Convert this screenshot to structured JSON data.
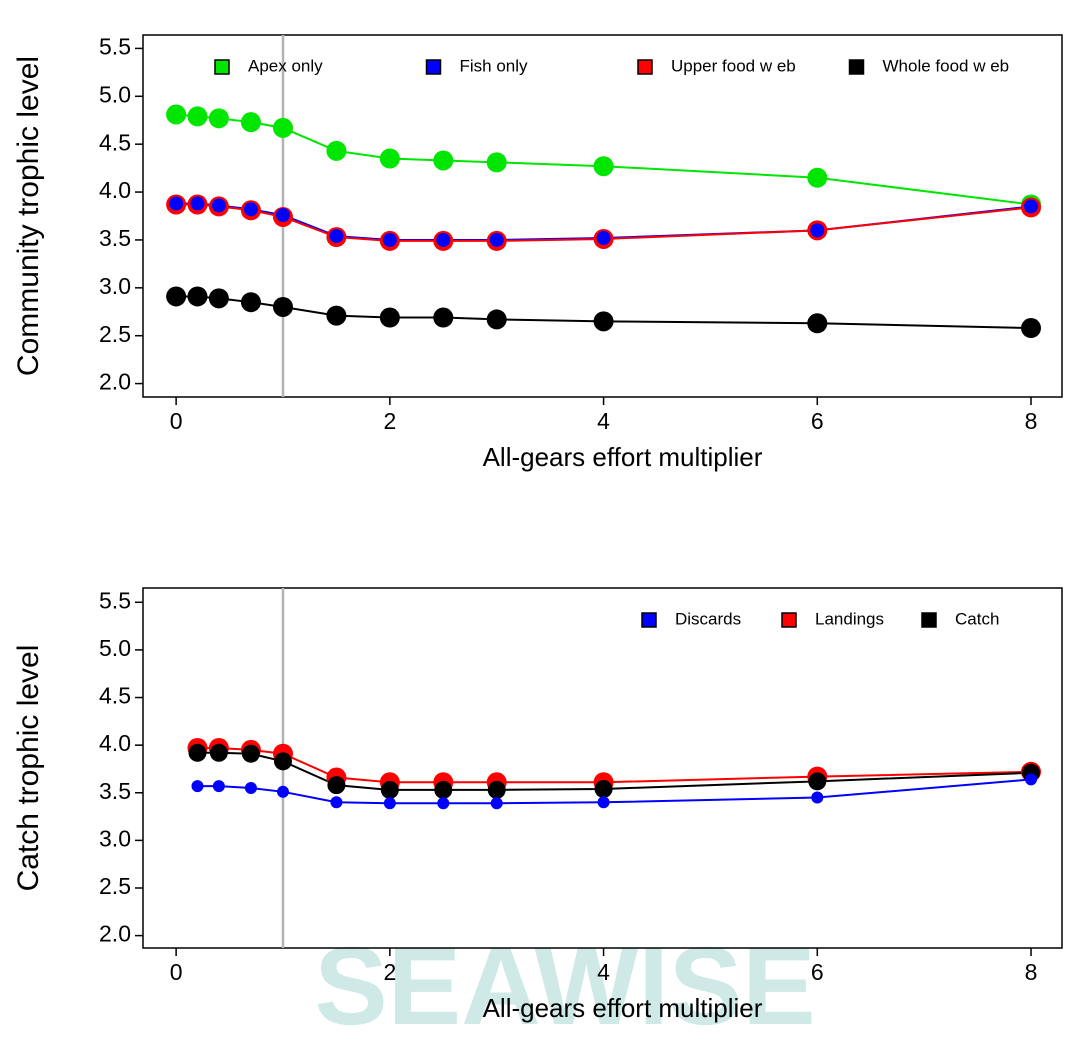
{
  "watermark": "SEAWISE",
  "chart_data": [
    {
      "type": "line",
      "x_label": "All-gears effort multiplier",
      "y_label": "Community trophic level",
      "xlim": [
        -0.31,
        8.29
      ],
      "ylim": [
        1.86,
        5.64
      ],
      "xticks": [
        0,
        2,
        4,
        6,
        8
      ],
      "yticks": [
        {
          "value": 2,
          "label": "2.0"
        },
        2.5,
        {
          "value": 3,
          "label": "3.0"
        },
        3.5,
        {
          "value": 4,
          "label": "4.0"
        },
        4.5,
        {
          "value": 5,
          "label": "5.0"
        },
        5.5
      ],
      "vline": 1,
      "vline_color": "#b3b3b3",
      "legend": "top",
      "x": [
        0,
        0.2,
        0.4,
        0.7,
        1,
        1.5,
        2,
        2.5,
        3,
        4,
        6,
        8
      ],
      "series": [
        {
          "name": "Apex only",
          "color": "#00e600",
          "marker_size": 10,
          "values": [
            4.81,
            4.79,
            4.77,
            4.73,
            4.67,
            4.43,
            4.35,
            4.33,
            4.31,
            4.27,
            4.15,
            3.87
          ]
        },
        {
          "name": "Fish only",
          "color": "#0000ff",
          "marker_size": 7,
          "values": [
            3.88,
            3.88,
            3.86,
            3.82,
            3.76,
            3.54,
            3.5,
            3.5,
            3.5,
            3.52,
            3.6,
            3.85
          ]
        },
        {
          "name": "Upper food w eb",
          "color": "#ff0000",
          "marker_size": 10,
          "values": [
            3.87,
            3.87,
            3.85,
            3.81,
            3.74,
            3.53,
            3.49,
            3.49,
            3.49,
            3.51,
            3.6,
            3.84
          ]
        },
        {
          "name": "Whole food w eb",
          "color": "#000000",
          "marker_size": 10,
          "values": [
            2.91,
            2.91,
            2.89,
            2.85,
            2.8,
            2.71,
            2.69,
            2.69,
            2.67,
            2.65,
            2.63,
            2.58
          ]
        }
      ]
    },
    {
      "type": "line",
      "x_label": "All-gears effort multiplier",
      "y_label": "Catch trophic level",
      "xlim": [
        -0.31,
        8.29
      ],
      "ylim": [
        1.87,
        5.65
      ],
      "xticks": [
        0,
        2,
        4,
        6,
        8
      ],
      "yticks": [
        {
          "value": 2,
          "label": "2.0"
        },
        2.5,
        {
          "value": 3,
          "label": "3.0"
        },
        3.5,
        {
          "value": 4,
          "label": "4.0"
        },
        4.5,
        {
          "value": 5,
          "label": "5.0"
        },
        5.5
      ],
      "vline": 1,
      "vline_color": "#b3b3b3",
      "legend": "top-right",
      "x": [
        0.2,
        0.4,
        0.7,
        1,
        1.5,
        2,
        2.5,
        3,
        4,
        6,
        8
      ],
      "series": [
        {
          "name": "Discards",
          "color": "#0000ff",
          "marker_size": 6,
          "values": [
            3.57,
            3.57,
            3.55,
            3.51,
            3.4,
            3.39,
            3.39,
            3.39,
            3.4,
            3.45,
            3.64
          ]
        },
        {
          "name": "Landings",
          "color": "#ff0000",
          "marker_size": 10,
          "values": [
            3.97,
            3.97,
            3.95,
            3.91,
            3.66,
            3.61,
            3.61,
            3.61,
            3.61,
            3.67,
            3.72
          ]
        },
        {
          "name": "Catch",
          "color": "#000000",
          "marker_size": 9,
          "values": [
            3.92,
            3.92,
            3.91,
            3.83,
            3.58,
            3.53,
            3.53,
            3.53,
            3.54,
            3.62,
            3.71
          ]
        }
      ]
    }
  ]
}
